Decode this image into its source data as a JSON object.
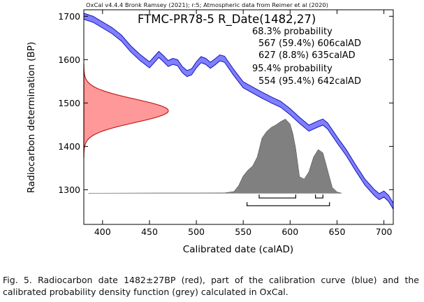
{
  "chart_data": {
    "type": "area",
    "header": "OxCal v4.4.4 Bronk Ramsey (2021); r:5; Atmospheric data from Reimer et al (2020)",
    "title": "FTMC-PR78-5 R_Date(1482,27)",
    "xlabel": "Calibrated date (calAD)",
    "ylabel": "Radiocarbon determination (BP)",
    "xlim": [
      380,
      710
    ],
    "ylim": [
      1220,
      1715
    ],
    "x_ticks": [
      400,
      450,
      500,
      550,
      600,
      650,
      700
    ],
    "y_ticks": [
      1300,
      1400,
      1500,
      1600,
      1700
    ],
    "grid": false,
    "annotations": [
      "68.3% probability",
      "567 (59.4%) 606calAD",
      "627 (8.8%) 635calAD",
      "95.4% probability",
      "554 (95.4%) 642calAD"
    ],
    "colors": {
      "calibration_curve": "#7f7fff",
      "calibration_edge": "#1414b4",
      "radiocarbon_date": "#ff9898",
      "radiocarbon_edge": "#c01c1c",
      "posterior": "#808080"
    },
    "calibration_curve": {
      "x": [
        380,
        390,
        400,
        410,
        420,
        430,
        440,
        450,
        455,
        460,
        465,
        470,
        475,
        480,
        485,
        490,
        495,
        500,
        505,
        510,
        515,
        520,
        525,
        530,
        540,
        550,
        560,
        570,
        580,
        590,
        600,
        610,
        620,
        630,
        635,
        640,
        650,
        660,
        670,
        680,
        690,
        695,
        700,
        705,
        710
      ],
      "y": [
        1700,
        1693,
        1680,
        1667,
        1650,
        1625,
        1605,
        1588,
        1600,
        1612,
        1602,
        1591,
        1596,
        1593,
        1577,
        1568,
        1572,
        1588,
        1600,
        1596,
        1587,
        1595,
        1604,
        1601,
        1570,
        1542,
        1530,
        1518,
        1507,
        1497,
        1480,
        1460,
        1442,
        1452,
        1456,
        1447,
        1415,
        1385,
        1350,
        1317,
        1293,
        1284,
        1290,
        1280,
        1262
      ],
      "half_width": 7
    },
    "radiocarbon_date": {
      "mean_bp": 1482,
      "sd_bp": 27
    },
    "posterior": {
      "x": [
        385,
        460,
        500,
        530,
        540,
        545,
        550,
        555,
        560,
        565,
        570,
        575,
        580,
        585,
        590,
        595,
        600,
        603,
        606,
        610,
        615,
        620,
        625,
        630,
        635,
        640,
        645,
        650,
        655
      ],
      "density": [
        0,
        0.3,
        0.3,
        0.4,
        2,
        9,
        21,
        28,
        33,
        44,
        67,
        75,
        80,
        83,
        87,
        90,
        84,
        72,
        54,
        20,
        17,
        26,
        44,
        53,
        49,
        28,
        7,
        1.5,
        0
      ]
    },
    "ranges": {
      "sigma1": [
        [
          567,
          606
        ],
        [
          627,
          635
        ]
      ],
      "sigma2": [
        [
          554,
          642
        ]
      ]
    }
  },
  "caption": "Fig. 5. Radiocarbon date 1482±27BP (red), part of the calibration curve (blue) and the calibrated probability density function (grey) calculated in OxCal."
}
